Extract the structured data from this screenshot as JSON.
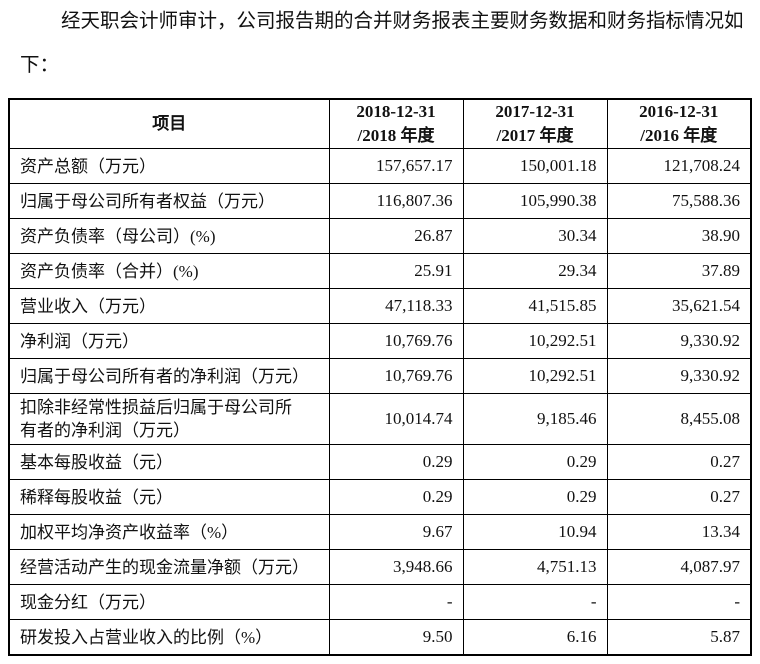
{
  "header": {
    "paragraph": "经天职会计师审计，公司报告期的合并财务报表主要财务数据和财务指标情况如下："
  },
  "table": {
    "columns": [
      "项目",
      "2018-12-31\n/2018 年度",
      "2017-12-31\n/2017 年度",
      "2016-12-31\n/2016 年度"
    ],
    "rows": [
      [
        "资产总额（万元）",
        "157,657.17",
        "150,001.18",
        "121,708.24"
      ],
      [
        "归属于母公司所有者权益（万元）",
        "116,807.36",
        "105,990.38",
        "75,588.36"
      ],
      [
        "资产负债率（母公司）(%)",
        "26.87",
        "30.34",
        "38.90"
      ],
      [
        "资产负债率（合并）(%)",
        "25.91",
        "29.34",
        "37.89"
      ],
      [
        "营业收入（万元）",
        "47,118.33",
        "41,515.85",
        "35,621.54"
      ],
      [
        "净利润（万元）",
        "10,769.76",
        "10,292.51",
        "9,330.92"
      ],
      [
        "归属于母公司所有者的净利润（万元）",
        "10,769.76",
        "10,292.51",
        "9,330.92"
      ],
      [
        "扣除非经常性损益后归属于母公司所\n有者的净利润（万元）",
        "10,014.74",
        "9,185.46",
        "8,455.08"
      ],
      [
        "基本每股收益（元）",
        "0.29",
        "0.29",
        "0.27"
      ],
      [
        "稀释每股收益（元）",
        "0.29",
        "0.29",
        "0.27"
      ],
      [
        "加权平均净资产收益率（%）",
        "9.67",
        "10.94",
        "13.34"
      ],
      [
        "经营活动产生的现金流量净额（万元）",
        "3,948.66",
        "4,751.13",
        "4,087.97"
      ],
      [
        "现金分红（万元）",
        "-",
        "-",
        "-"
      ],
      [
        "研发投入占营业收入的比例（%）",
        "9.50",
        "6.16",
        "5.87"
      ]
    ]
  }
}
